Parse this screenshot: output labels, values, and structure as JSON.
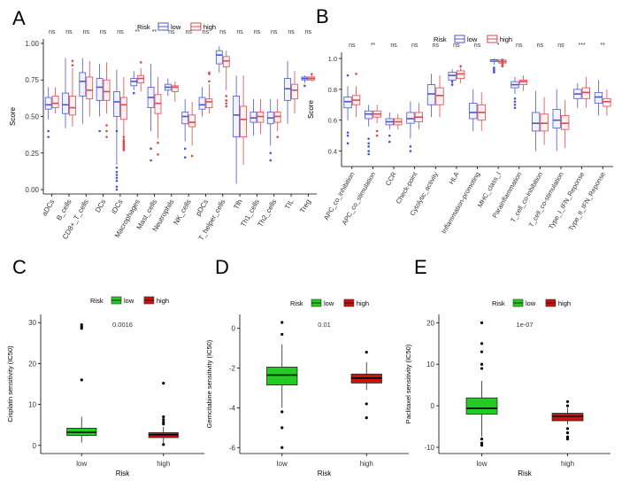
{
  "chart_data": [
    {
      "id": "A",
      "panel_label": "A",
      "type": "box",
      "legend_title": "Risk",
      "legend": [
        "low",
        "high"
      ],
      "colors": {
        "low": "#4a55d6",
        "high": "#e0474c"
      },
      "ylabel": "Score",
      "ylim": [
        -0.03,
        1.03
      ],
      "yticks": [
        0.0,
        0.25,
        0.5,
        0.75,
        1.0
      ],
      "ytick_labels": [
        "0.00",
        "0.25",
        "0.50",
        "0.75",
        "1.00"
      ],
      "categories": [
        "aDCs",
        "B_cells",
        "CD8+_T_cells",
        "DCs",
        "iDCs",
        "Macrophages",
        "Mast_cells",
        "Neutrophils",
        "NK_cells",
        "pDCs",
        "T_helper_cells",
        "Tfh",
        "Th1_cells",
        "Th2_cells",
        "TIL",
        "Treg"
      ],
      "significance": [
        "ns",
        "ns",
        "ns",
        "ns",
        "ns",
        "**",
        "**",
        "ns",
        "ns",
        "ns",
        "ns",
        "ns",
        "ns",
        "ns",
        "ns",
        "ns"
      ],
      "boxes": {
        "low": [
          [
            0.48,
            0.55,
            0.58,
            0.63,
            0.7
          ],
          [
            0.42,
            0.52,
            0.58,
            0.66,
            0.9
          ],
          [
            0.45,
            0.64,
            0.74,
            0.8,
            0.9
          ],
          [
            0.5,
            0.61,
            0.7,
            0.76,
            0.86
          ],
          [
            0.17,
            0.5,
            0.6,
            0.67,
            0.82
          ],
          [
            0.68,
            0.71,
            0.74,
            0.76,
            0.81
          ],
          [
            0.4,
            0.56,
            0.63,
            0.7,
            0.86
          ],
          [
            0.64,
            0.68,
            0.7,
            0.72,
            0.76
          ],
          [
            0.33,
            0.45,
            0.5,
            0.53,
            0.62
          ],
          [
            0.5,
            0.55,
            0.58,
            0.63,
            0.7
          ],
          [
            0.8,
            0.86,
            0.92,
            0.95,
            0.98
          ],
          [
            0.04,
            0.36,
            0.51,
            0.64,
            0.78
          ],
          [
            0.37,
            0.46,
            0.49,
            0.53,
            0.62
          ],
          [
            0.3,
            0.45,
            0.49,
            0.53,
            0.62
          ],
          [
            0.45,
            0.61,
            0.69,
            0.76,
            0.88
          ],
          [
            0.73,
            0.75,
            0.76,
            0.77,
            0.78
          ]
        ],
        "high": [
          [
            0.52,
            0.56,
            0.59,
            0.64,
            0.7
          ],
          [
            0.43,
            0.51,
            0.56,
            0.64,
            0.83
          ],
          [
            0.5,
            0.62,
            0.68,
            0.77,
            0.88
          ],
          [
            0.52,
            0.61,
            0.67,
            0.75,
            0.87
          ],
          [
            0.3,
            0.48,
            0.58,
            0.63,
            0.77
          ],
          [
            0.67,
            0.73,
            0.76,
            0.78,
            0.83
          ],
          [
            0.35,
            0.52,
            0.59,
            0.65,
            0.77
          ],
          [
            0.6,
            0.67,
            0.7,
            0.71,
            0.74
          ],
          [
            0.3,
            0.43,
            0.46,
            0.51,
            0.6
          ],
          [
            0.52,
            0.56,
            0.6,
            0.62,
            0.72
          ],
          [
            0.68,
            0.84,
            0.88,
            0.91,
            0.95
          ],
          [
            0.17,
            0.36,
            0.48,
            0.57,
            0.78
          ],
          [
            0.38,
            0.46,
            0.5,
            0.53,
            0.62
          ],
          [
            0.4,
            0.46,
            0.5,
            0.53,
            0.62
          ],
          [
            0.52,
            0.62,
            0.68,
            0.72,
            0.81
          ],
          [
            0.74,
            0.75,
            0.76,
            0.77,
            0.78
          ]
        ]
      },
      "outliers": {
        "low": [
          [
            0.4,
            0.36
          ],
          [],
          [],
          [
            0.4
          ],
          [
            0.4,
            0.12,
            0.08,
            0.06,
            0.02,
            0.0,
            0.1,
            0.15
          ],
          [
            0.66
          ],
          [
            0.2,
            0.28
          ],
          [],
          [
            0.28,
            0.22
          ],
          [],
          [],
          [],
          [],
          [
            0.25,
            0.2
          ],
          [],
          [
            0.71
          ]
        ],
        "high": [
          [],
          [
            0.88,
            0.85
          ],
          [],
          [
            0.44,
            0.4,
            0.36
          ],
          [
            0.3,
            0.32,
            0.28,
            0.33,
            0.31,
            0.29,
            0.27,
            0.34,
            0.36
          ],
          [
            0.87
          ],
          [
            0.24,
            0.32
          ],
          [],
          [
            0.23
          ],
          [
            0.8,
            0.79,
            0.74
          ],
          [
            0.61,
            0.64,
            0.57,
            0.59
          ],
          [],
          [],
          [
            0.36
          ],
          [],
          [
            0.79
          ]
        ]
      }
    },
    {
      "id": "B",
      "panel_label": "B",
      "type": "box",
      "legend_title": "Risk",
      "legend": [
        "low",
        "high"
      ],
      "colors": {
        "low": "#4a55d6",
        "high": "#e0474c"
      },
      "ylabel": "Score",
      "ylim": [
        0.3,
        1.04
      ],
      "yticks": [
        0.4,
        0.6,
        0.8,
        1.0
      ],
      "ytick_labels": [
        "0.4",
        "0.6",
        "0.8",
        "1.0"
      ],
      "categories": [
        "APC_co_inhibition",
        "APC_co_stimulation",
        "CCR",
        "Check-point",
        "Cytolytic_activity",
        "HLA",
        "Inflammation-promoting",
        "MHC_class_I",
        "Parainflammation",
        "T_cell_co-inhibition",
        "T_cell_co-stimulation",
        "Type_I_IFN_Reponse",
        "Type_II_IFN_Reponse"
      ],
      "significance": [
        "ns",
        "**",
        "ns",
        "ns",
        "ns",
        "ns",
        "ns",
        "*",
        "ns",
        "ns",
        "ns",
        "***",
        "**"
      ],
      "boxes": {
        "low": [
          [
            0.6,
            0.68,
            0.72,
            0.75,
            0.82
          ],
          [
            0.56,
            0.61,
            0.64,
            0.66,
            0.7
          ],
          [
            0.54,
            0.57,
            0.59,
            0.61,
            0.65
          ],
          [
            0.48,
            0.58,
            0.61,
            0.65,
            0.72
          ],
          [
            0.62,
            0.7,
            0.77,
            0.83,
            0.9
          ],
          [
            0.82,
            0.86,
            0.89,
            0.91,
            0.93
          ],
          [
            0.53,
            0.61,
            0.65,
            0.71,
            0.8
          ],
          [
            0.96,
            0.98,
            0.99,
            0.99,
            1.0
          ],
          [
            0.77,
            0.81,
            0.83,
            0.85,
            0.88
          ],
          [
            0.4,
            0.53,
            0.58,
            0.65,
            0.79
          ],
          [
            0.4,
            0.55,
            0.6,
            0.67,
            0.8
          ],
          [
            0.68,
            0.74,
            0.77,
            0.8,
            0.84
          ],
          [
            0.63,
            0.71,
            0.75,
            0.78,
            0.86
          ]
        ],
        "high": [
          [
            0.62,
            0.7,
            0.73,
            0.76,
            0.82
          ],
          [
            0.58,
            0.62,
            0.64,
            0.66,
            0.7
          ],
          [
            0.54,
            0.57,
            0.59,
            0.61,
            0.64
          ],
          [
            0.54,
            0.59,
            0.62,
            0.65,
            0.71
          ],
          [
            0.62,
            0.7,
            0.76,
            0.81,
            0.89
          ],
          [
            0.84,
            0.87,
            0.9,
            0.92,
            0.94
          ],
          [
            0.53,
            0.6,
            0.65,
            0.7,
            0.78
          ],
          [
            0.96,
            0.97,
            0.98,
            0.99,
            1.0
          ],
          [
            0.79,
            0.83,
            0.85,
            0.86,
            0.89
          ],
          [
            0.44,
            0.53,
            0.58,
            0.64,
            0.75
          ],
          [
            0.42,
            0.54,
            0.58,
            0.63,
            0.73
          ],
          [
            0.68,
            0.74,
            0.78,
            0.81,
            0.88
          ],
          [
            0.63,
            0.69,
            0.72,
            0.74,
            0.8
          ]
        ]
      },
      "outliers": {
        "low": [
          [
            0.89,
            0.52,
            0.5,
            0.45
          ],
          [
            0.48,
            0.45,
            0.43,
            0.4,
            0.38
          ],
          [
            0.5,
            0.46
          ],
          [
            0.43,
            0.4
          ],
          [],
          [
            0.85,
            0.83
          ],
          [],
          [
            0.94,
            0.93,
            0.92,
            0.91
          ],
          [
            0.74,
            0.72,
            0.7,
            0.68
          ],
          [],
          [],
          [],
          []
        ],
        "high": [
          [
            0.9
          ],
          [
            0.53,
            0.5
          ],
          [],
          [],
          [],
          [
            0.95
          ],
          [],
          [
            0.95,
            0.96,
            0.97,
            0.98,
            0.99
          ],
          [],
          [],
          [],
          [],
          []
        ]
      }
    },
    {
      "id": "C",
      "panel_label": "C",
      "type": "box",
      "legend_title": "Risk",
      "legend": [
        "low",
        "high"
      ],
      "colors": {
        "low": "#22cc22",
        "high": "#cc1111"
      },
      "annotation": "0.0016",
      "xlabel": "Risk",
      "ylabel": "Cisplatin sensitivity (IC50)",
      "ylim": [
        -2,
        32
      ],
      "yticks": [
        0,
        10,
        20,
        30
      ],
      "ytick_labels": [
        "0",
        "10",
        "20",
        "30"
      ],
      "categories": [
        "low",
        "high"
      ],
      "boxes": {
        "low": [
          [
            0.7,
            2.4,
            3.2,
            4.2,
            7.0
          ]
        ],
        "high": [
          [
            0.5,
            1.9,
            2.6,
            3.1,
            4.5
          ]
        ]
      },
      "outliers": {
        "low": [
          [
            29.5,
            29.0,
            28.6,
            16.0
          ]
        ],
        "high": [
          [
            15.2,
            7.0,
            6.3,
            5.7,
            5.2,
            0.2
          ]
        ]
      }
    },
    {
      "id": "D",
      "panel_label": "D",
      "type": "box",
      "legend_title": "Risk",
      "legend": [
        "low",
        "high"
      ],
      "colors": {
        "low": "#22cc22",
        "high": "#cc1111"
      },
      "annotation": "0.01",
      "xlabel": "Risk",
      "ylabel": "Gemcitabine sensitivity (IC50)",
      "ylim": [
        -6.3,
        0.7
      ],
      "yticks": [
        -6,
        -4,
        -2,
        0
      ],
      "ytick_labels": [
        "-6",
        "-4",
        "-2",
        "0"
      ],
      "categories": [
        "low",
        "high"
      ],
      "boxes": {
        "low": [
          [
            -4.0,
            -2.85,
            -2.35,
            -1.95,
            -0.8
          ]
        ],
        "high": [
          [
            -3.1,
            -2.75,
            -2.5,
            -2.3,
            -1.7
          ]
        ]
      },
      "outliers": {
        "low": [
          [
            0.3,
            -0.3,
            -4.2,
            -5.0,
            -6.0
          ]
        ],
        "high": [
          [
            -1.2,
            -3.8,
            -4.5
          ]
        ]
      }
    },
    {
      "id": "E",
      "panel_label": "E",
      "type": "box",
      "legend_title": "Risk",
      "legend": [
        "low",
        "high"
      ],
      "colors": {
        "low": "#22cc22",
        "high": "#cc1111"
      },
      "annotation": "1e-07",
      "xlabel": "Risk",
      "ylabel": "Paclitaxel sensitivity (IC50)",
      "ylim": [
        -11.5,
        22
      ],
      "yticks": [
        -10,
        0,
        10,
        20
      ],
      "ytick_labels": [
        "-10",
        "0",
        "10",
        "20"
      ],
      "categories": [
        "low",
        "high"
      ],
      "boxes": {
        "low": [
          [
            -7.5,
            -2.0,
            -0.6,
            1.9,
            6.0
          ]
        ],
        "high": [
          [
            -4.5,
            -3.6,
            -2.5,
            -1.8,
            -0.5
          ]
        ]
      },
      "outliers": {
        "low": [
          [
            20,
            15,
            13,
            10,
            9,
            -8,
            -9,
            -9.5
          ]
        ],
        "high": [
          [
            1,
            0,
            -5.5,
            -6.5,
            -7.5,
            -8
          ]
        ]
      }
    }
  ]
}
